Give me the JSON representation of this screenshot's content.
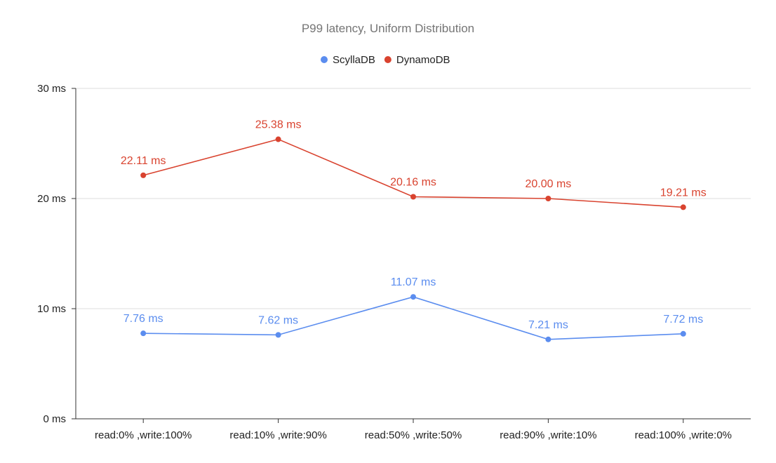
{
  "chart_data": {
    "type": "line",
    "title": "P99 latency, Uniform Distribution",
    "categories": [
      "read:0% ,write:100%",
      "read:10% ,write:90%",
      "read:50% ,write:50%",
      "read:90% ,write:10%",
      "read:100% ,write:0%"
    ],
    "series": [
      {
        "name": "ScyllaDB",
        "color": "#5b8def",
        "values": [
          7.76,
          7.62,
          11.07,
          7.21,
          7.72
        ],
        "labels": [
          "7.76 ms",
          "7.62 ms",
          "11.07 ms",
          "7.21 ms",
          "7.72 ms"
        ]
      },
      {
        "name": "DynamoDB",
        "color": "#d9432f",
        "values": [
          22.11,
          25.38,
          20.16,
          20.0,
          19.21
        ],
        "labels": [
          "22.11 ms",
          "25.38 ms",
          "20.16 ms",
          "20.00 ms",
          "19.21 ms"
        ]
      }
    ],
    "ylim": [
      0,
      30
    ],
    "yticks": [
      0,
      10,
      20,
      30
    ],
    "ytick_labels": [
      "0 ms",
      "10 ms",
      "20 ms",
      "30 ms"
    ],
    "legend_position": "top-center",
    "grid": true
  }
}
